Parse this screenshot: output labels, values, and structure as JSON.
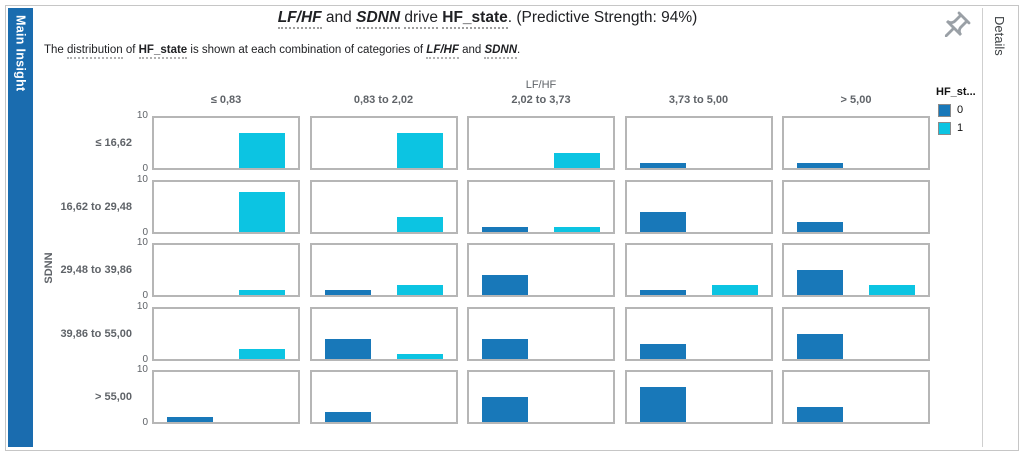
{
  "sidebar": {
    "label": "Main Insight",
    "color": "#1a6caf"
  },
  "details_rail": {
    "label": "Details"
  },
  "header": {
    "title": {
      "lfhf": "LF/HF",
      "and_1": " and ",
      "sdnn": "SDNN",
      "sp_1": " ",
      "drive": "drive",
      "sp_2": " ",
      "hf_state": "HF_state",
      "tail": ". (Predictive Strength: 94%)"
    },
    "subtitle": {
      "p1": "The ",
      "p2": "distribution",
      "p3": " of ",
      "p4": "HF_state",
      "p5": " is shown at each combination of categories of ",
      "p6": "LF/HF",
      "p7": " and ",
      "p8": "SDNN",
      "p9": "."
    }
  },
  "chart_data": {
    "type": "bar",
    "layout": "faceted-small-multiples",
    "col_title": "LF/HF",
    "col_categories": [
      "≤ 0,83",
      "0,83 to 2,02",
      "2,02 to 3,73",
      "3,73 to 5,00",
      "> 5,00"
    ],
    "row_title": "SDNN",
    "row_categories": [
      "≤ 16,62",
      "16,62 to 29,48",
      "29,48 to 39,86",
      "39,86 to 55,00",
      "> 55,00"
    ],
    "ylim": [
      0,
      10
    ],
    "y_ticks": [
      "10",
      "0"
    ],
    "grid": false,
    "legend": {
      "title": "HF_st...",
      "position": "top-right",
      "entries": [
        {
          "label": "0",
          "color": "#1878b9"
        },
        {
          "label": "1",
          "color": "#0cc4e2"
        }
      ]
    },
    "series": [
      "0",
      "1"
    ],
    "cells": [
      [
        [
          0,
          7
        ],
        [
          0,
          7
        ],
        [
          0,
          3
        ],
        [
          1,
          0
        ],
        [
          1,
          0
        ]
      ],
      [
        [
          0,
          8
        ],
        [
          0,
          3
        ],
        [
          1,
          1
        ],
        [
          4,
          0
        ],
        [
          2,
          0
        ]
      ],
      [
        [
          0,
          1
        ],
        [
          1,
          2
        ],
        [
          4,
          0
        ],
        [
          1,
          2
        ],
        [
          5,
          2
        ]
      ],
      [
        [
          0,
          2
        ],
        [
          4,
          1
        ],
        [
          4,
          0
        ],
        [
          3,
          0
        ],
        [
          5,
          0
        ]
      ],
      [
        [
          1,
          0
        ],
        [
          2,
          0
        ],
        [
          5,
          0
        ],
        [
          7,
          0
        ],
        [
          3,
          0
        ]
      ]
    ]
  }
}
